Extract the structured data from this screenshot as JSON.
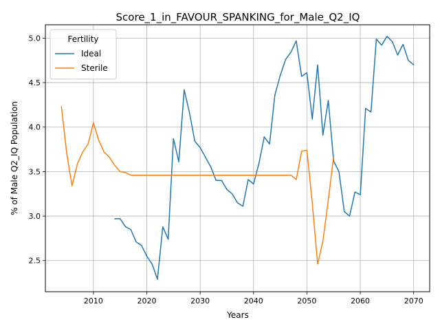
{
  "chart_data": {
    "type": "line",
    "title": "Score_1_in_FAVOUR_SPANKING_for_Male_Q2_IQ",
    "xlabel": "Years",
    "ylabel": "% of Male Q2_IQ Population",
    "xlim": [
      2001,
      2073
    ],
    "ylim": [
      2.15,
      5.15
    ],
    "xticks": [
      2010,
      2020,
      2030,
      2040,
      2050,
      2060,
      2070
    ],
    "yticks": [
      2.5,
      3.0,
      3.5,
      4.0,
      4.5,
      5.0
    ],
    "xtick_labels": [
      "2010",
      "2020",
      "2030",
      "2040",
      "2050",
      "2060",
      "2070"
    ],
    "ytick_labels": [
      "2.5",
      "3.0",
      "3.5",
      "4.0",
      "4.5",
      "5.0"
    ],
    "grid": true,
    "legend": {
      "title": "Fertility",
      "placement": "upper-left"
    },
    "series": [
      {
        "name": "Ideal",
        "color": "#1f77b4",
        "x": [
          2014,
          2015,
          2016,
          2017,
          2018,
          2019,
          2020,
          2021,
          2022,
          2023,
          2024,
          2025,
          2026,
          2027,
          2028,
          2029,
          2030,
          2031,
          2032,
          2033,
          2034,
          2035,
          2036,
          2037,
          2038,
          2039,
          2040,
          2041,
          2042,
          2043,
          2044,
          2045,
          2046,
          2047,
          2048,
          2049,
          2050,
          2051,
          2052,
          2053,
          2054,
          2055,
          2056,
          2057,
          2058,
          2059,
          2060,
          2061,
          2062,
          2063,
          2064,
          2065,
          2066,
          2067,
          2068,
          2069,
          2070
        ],
        "y": [
          2.97,
          2.97,
          2.88,
          2.85,
          2.71,
          2.67,
          2.55,
          2.46,
          2.29,
          2.88,
          2.74,
          3.87,
          3.61,
          4.42,
          4.16,
          3.84,
          3.77,
          3.66,
          3.55,
          3.4,
          3.4,
          3.3,
          3.25,
          3.15,
          3.11,
          3.41,
          3.36,
          3.59,
          3.89,
          3.81,
          4.36,
          4.58,
          4.76,
          4.84,
          4.97,
          4.57,
          4.61,
          4.09,
          4.7,
          3.91,
          4.3,
          3.62,
          3.5,
          3.05,
          3.0,
          3.27,
          3.24,
          4.21,
          4.17,
          4.99,
          4.92,
          5.02,
          4.96,
          4.81,
          4.93,
          4.75,
          4.7
        ]
      },
      {
        "name": "Sterile",
        "color": "#ff7f0e",
        "x": [
          2004,
          2005,
          2006,
          2007,
          2008,
          2009,
          2010,
          2011,
          2012,
          2013,
          2014,
          2015,
          2016,
          2017,
          2018,
          2019,
          2020,
          2021,
          2022,
          2023,
          2024,
          2025,
          2026,
          2027,
          2028,
          2029,
          2030,
          2031,
          2032,
          2033,
          2034,
          2035,
          2036,
          2037,
          2038,
          2039,
          2040,
          2041,
          2042,
          2043,
          2044,
          2045,
          2046,
          2047,
          2048,
          2049,
          2050,
          2051,
          2052,
          2053,
          2054,
          2055
        ],
        "y": [
          4.23,
          3.7,
          3.34,
          3.59,
          3.72,
          3.81,
          4.05,
          3.85,
          3.72,
          3.66,
          3.57,
          3.5,
          3.49,
          3.46,
          3.46,
          3.46,
          3.46,
          3.46,
          3.46,
          3.46,
          3.46,
          3.46,
          3.46,
          3.46,
          3.46,
          3.46,
          3.46,
          3.46,
          3.46,
          3.46,
          3.46,
          3.46,
          3.46,
          3.46,
          3.46,
          3.46,
          3.46,
          3.46,
          3.46,
          3.46,
          3.46,
          3.46,
          3.46,
          3.46,
          3.41,
          3.73,
          3.74,
          3.15,
          2.46,
          2.72,
          3.18,
          3.67
        ]
      }
    ]
  }
}
